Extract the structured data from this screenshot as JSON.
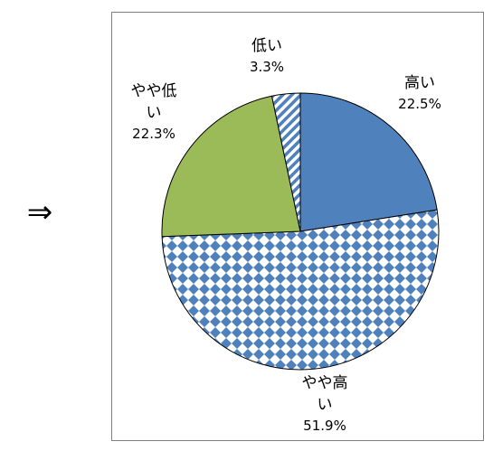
{
  "arrow": "⇒",
  "chart_data": {
    "type": "pie",
    "title": "",
    "grid": false,
    "legend": "none",
    "start_angle": "12 o'clock, clockwise",
    "slices": [
      {
        "label": "高い",
        "label_lines": [
          "高い"
        ],
        "value": 22.5,
        "display": "22.5%",
        "color": "#4f81bd",
        "pattern": "solid"
      },
      {
        "label": "やや高い",
        "label_lines": [
          "やや高",
          "い"
        ],
        "value": 51.9,
        "display": "51.9%",
        "color": "#4f81bd",
        "pattern": "diamond-dots"
      },
      {
        "label": "やや低い",
        "label_lines": [
          "やや低",
          "い"
        ],
        "value": 22.3,
        "display": "22.3%",
        "color": "#9bbb59",
        "pattern": "solid"
      },
      {
        "label": "低い",
        "label_lines": [
          "低い"
        ],
        "value": 3.3,
        "display": "3.3%",
        "color": "#4f81bd",
        "pattern": "diagonal-stripes"
      }
    ]
  }
}
